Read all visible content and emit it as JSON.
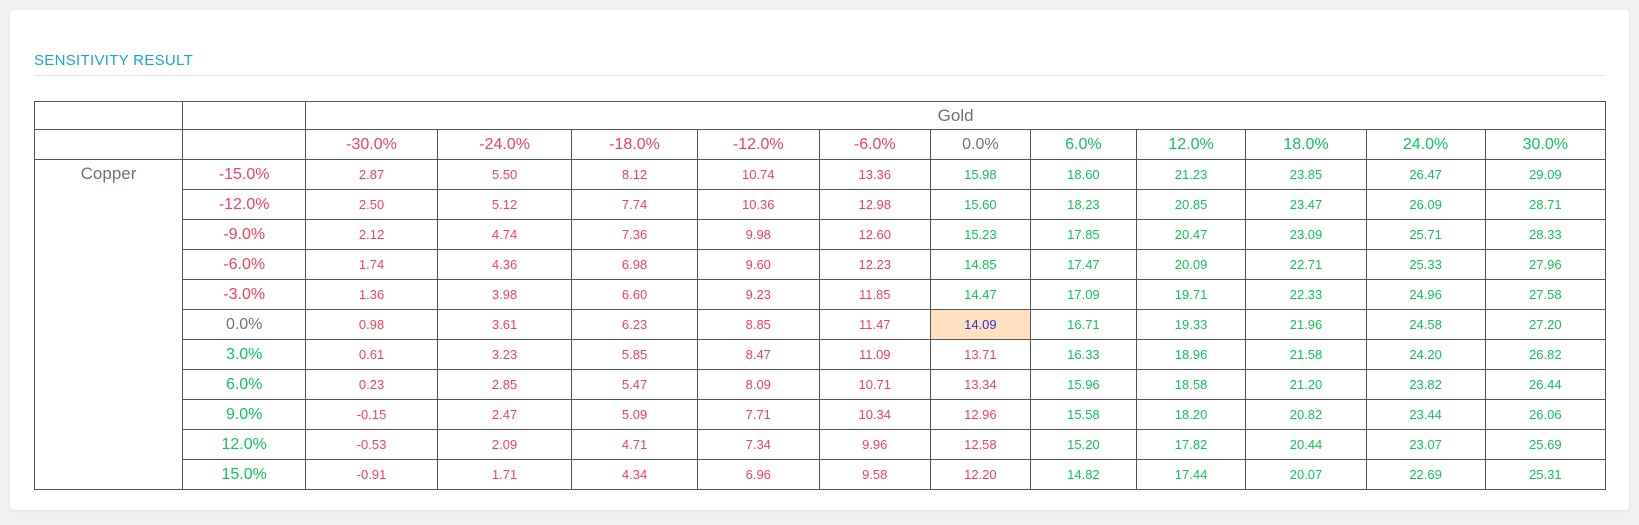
{
  "card": {
    "title": "SENSITIVITY RESULT"
  },
  "table": {
    "col_axis_label": "Gold",
    "row_axis_label": "Copper",
    "col_headers": [
      "-30.0%",
      "-24.0%",
      "-18.0%",
      "-12.0%",
      "-6.0%",
      "0.0%",
      "6.0%",
      "12.0%",
      "18.0%",
      "24.0%",
      "30.0%"
    ],
    "row_headers": [
      "-15.0%",
      "-12.0%",
      "-9.0%",
      "-6.0%",
      "-3.0%",
      "0.0%",
      "3.0%",
      "6.0%",
      "9.0%",
      "12.0%",
      "15.0%"
    ],
    "cells": [
      [
        "2.87",
        "5.50",
        "8.12",
        "10.74",
        "13.36",
        "15.98",
        "18.60",
        "21.23",
        "23.85",
        "26.47",
        "29.09"
      ],
      [
        "2.50",
        "5.12",
        "7.74",
        "10.36",
        "12.98",
        "15.60",
        "18.23",
        "20.85",
        "23.47",
        "26.09",
        "28.71"
      ],
      [
        "2.12",
        "4.74",
        "7.36",
        "9.98",
        "12.60",
        "15.23",
        "17.85",
        "20.47",
        "23.09",
        "25.71",
        "28.33"
      ],
      [
        "1.74",
        "4.36",
        "6.98",
        "9.60",
        "12.23",
        "14.85",
        "17.47",
        "20.09",
        "22.71",
        "25.33",
        "27.96"
      ],
      [
        "1.36",
        "3.98",
        "6.60",
        "9.23",
        "11.85",
        "14.47",
        "17.09",
        "19.71",
        "22.33",
        "24.96",
        "27.58"
      ],
      [
        "0.98",
        "3.61",
        "6.23",
        "8.85",
        "11.47",
        "14.09",
        "16.71",
        "19.33",
        "21.96",
        "24.58",
        "27.20"
      ],
      [
        "0.61",
        "3.23",
        "5.85",
        "8.47",
        "11.09",
        "13.71",
        "16.33",
        "18.96",
        "21.58",
        "24.20",
        "26.82"
      ],
      [
        "0.23",
        "2.85",
        "5.47",
        "8.09",
        "10.71",
        "13.34",
        "15.96",
        "18.58",
        "21.20",
        "23.82",
        "26.44"
      ],
      [
        "-0.15",
        "2.47",
        "5.09",
        "7.71",
        "10.34",
        "12.96",
        "15.58",
        "18.20",
        "20.82",
        "23.44",
        "26.06"
      ],
      [
        "-0.53",
        "2.09",
        "4.71",
        "7.34",
        "9.96",
        "12.58",
        "15.20",
        "17.82",
        "20.44",
        "23.07",
        "25.69"
      ],
      [
        "-0.91",
        "1.71",
        "4.34",
        "6.96",
        "9.58",
        "12.20",
        "14.82",
        "17.44",
        "20.07",
        "22.69",
        "25.31"
      ]
    ]
  },
  "colors": {
    "negative": "#f43f5e",
    "neutral": "#6b7280",
    "positive": "#10c35a",
    "base_case_bg": "#ffe0bf",
    "base_case_text": "#2f2fd8",
    "title": "#1ba3d9"
  }
}
